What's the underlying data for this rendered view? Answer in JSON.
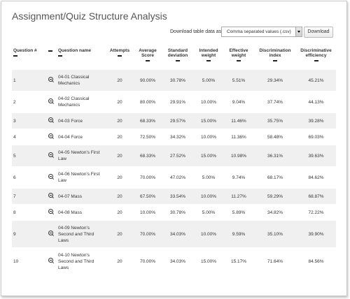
{
  "page": {
    "title": "Assignment/Quiz Structure Analysis",
    "download_label": "Download table data as",
    "download_format": "Comma separated values (.csv)",
    "download_button": "Download"
  },
  "table": {
    "headers": [
      "Question #",
      "",
      "Question name",
      "Attempts",
      "Average Score",
      "Standard deviation",
      "Intended weight",
      "Effective weight",
      "Discrimination index",
      "Discriminative efficiency"
    ],
    "rows": [
      {
        "num": "1",
        "name": "04-01 Classical Mechanics",
        "attempts": "20",
        "avg": "90.00%",
        "std": "30.78%",
        "intended": "5.00%",
        "effective": "5.51%",
        "disc": "29.34%",
        "eff": "45.21%"
      },
      {
        "num": "2",
        "name": "04-02 Classical Mechanics",
        "attempts": "20",
        "avg": "80.00%",
        "std": "29.91%",
        "intended": "10.00%",
        "effective": "9.04%",
        "disc": "37.74%",
        "eff": "44.13%"
      },
      {
        "num": "3",
        "name": "04-03 Force",
        "attempts": "20",
        "avg": "68.33%",
        "std": "29.57%",
        "intended": "15.00%",
        "effective": "11.46%",
        "disc": "35.75%",
        "eff": "39.28%"
      },
      {
        "num": "4",
        "name": "04-04 Force",
        "attempts": "20",
        "avg": "72.50%",
        "std": "34.32%",
        "intended": "10.00%",
        "effective": "11.36%",
        "disc": "58.48%",
        "eff": "69.03%"
      },
      {
        "num": "5",
        "name": "04-05 Newton's First Law",
        "attempts": "20",
        "avg": "68.33%",
        "std": "27.52%",
        "intended": "15.00%",
        "effective": "10.98%",
        "disc": "36.31%",
        "eff": "39.63%"
      },
      {
        "num": "6",
        "name": "04-06 Newton's First Law",
        "attempts": "20",
        "avg": "70.00%",
        "std": "47.02%",
        "intended": "5.00%",
        "effective": "9.74%",
        "disc": "68.17%",
        "eff": "84.62%"
      },
      {
        "num": "7",
        "name": "04-07 Mass",
        "attempts": "20",
        "avg": "67.50%",
        "std": "33.54%",
        "intended": "10.00%",
        "effective": "11.27%",
        "disc": "59.29%",
        "eff": "68.87%"
      },
      {
        "num": "8",
        "name": "04-08 Mass",
        "attempts": "20",
        "avg": "10.00%",
        "std": "30.78%",
        "intended": "5.00%",
        "effective": "5.89%",
        "disc": "34.82%",
        "eff": "72.22%"
      },
      {
        "num": "9",
        "name": "04-09 Newton's Second and Third Laws",
        "attempts": "20",
        "avg": "70.00%",
        "std": "34.03%",
        "intended": "10.00%",
        "effective": "9.59%",
        "disc": "35.10%",
        "eff": "39.90%"
      },
      {
        "num": "10",
        "name": "04-10 Newton's Second and Third Laws",
        "attempts": "20",
        "avg": "70.00%",
        "std": "34.03%",
        "intended": "15.00%",
        "effective": "15.17%",
        "disc": "71.64%",
        "eff": "84.56%"
      }
    ]
  }
}
